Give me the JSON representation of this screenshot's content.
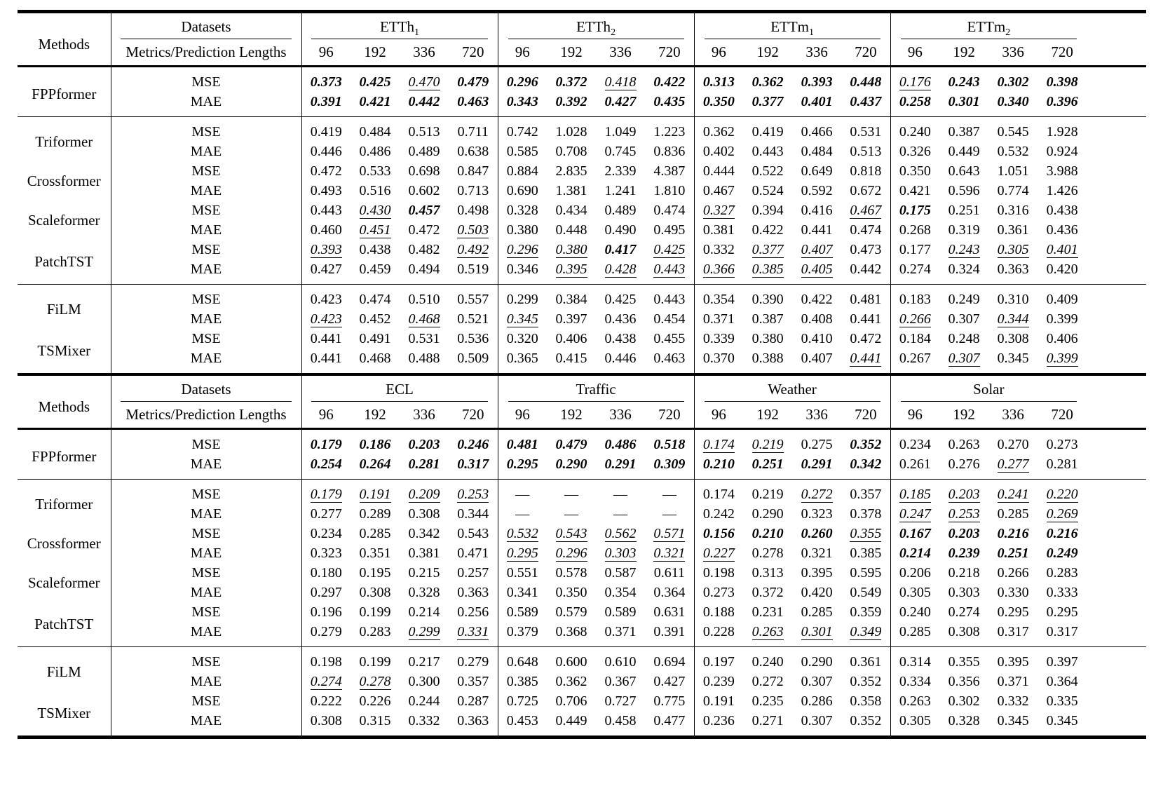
{
  "page": {
    "background": "#ffffff",
    "text_color": "#000000"
  },
  "table": {
    "methods_label": "Methods",
    "datasets_label": "Datasets",
    "metrics_label": "Metrics/Prediction Lengths",
    "lengths": [
      "96",
      "192",
      "336",
      "720"
    ],
    "metrics": [
      "MSE",
      "MAE"
    ],
    "formatting_legend": {
      "b": "best result (bold italic)",
      "u": "second-best result (underlined italic)",
      "plain": "no emphasis"
    },
    "missing_value": "—",
    "panels": [
      {
        "datasets": [
          {
            "label": "ETTh",
            "sub": "1"
          },
          {
            "label": "ETTh",
            "sub": "2"
          },
          {
            "label": "ETTm",
            "sub": "1"
          },
          {
            "label": "ETTm",
            "sub": "2"
          }
        ],
        "blocks": [
          [
            {
              "name": "FPPformer",
              "MSE": [
                "0.373|b",
                "0.425|b",
                "0.470|u",
                "0.479|b",
                "0.296|b",
                "0.372|b",
                "0.418|u",
                "0.422|b",
                "0.313|b",
                "0.362|b",
                "0.393|b",
                "0.448|b",
                "0.176|u",
                "0.243|b",
                "0.302|b",
                "0.398|b"
              ],
              "MAE": [
                "0.391|b",
                "0.421|b",
                "0.442|b",
                "0.463|b",
                "0.343|b",
                "0.392|b",
                "0.427|b",
                "0.435|b",
                "0.350|b",
                "0.377|b",
                "0.401|b",
                "0.437|b",
                "0.258|b",
                "0.301|b",
                "0.340|b",
                "0.396|b"
              ]
            }
          ],
          [
            {
              "name": "Triformer",
              "MSE": [
                "0.419",
                "0.484",
                "0.513",
                "0.711",
                "0.742",
                "1.028",
                "1.049",
                "1.223",
                "0.362",
                "0.419",
                "0.466",
                "0.531",
                "0.240",
                "0.387",
                "0.545",
                "1.928"
              ],
              "MAE": [
                "0.446",
                "0.486",
                "0.489",
                "0.638",
                "0.585",
                "0.708",
                "0.745",
                "0.836",
                "0.402",
                "0.443",
                "0.484",
                "0.513",
                "0.326",
                "0.449",
                "0.532",
                "0.924"
              ]
            },
            {
              "name": "Crossformer",
              "MSE": [
                "0.472",
                "0.533",
                "0.698",
                "0.847",
                "0.884",
                "2.835",
                "2.339",
                "4.387",
                "0.444",
                "0.522",
                "0.649",
                "0.818",
                "0.350",
                "0.643",
                "1.051",
                "3.988"
              ],
              "MAE": [
                "0.493",
                "0.516",
                "0.602",
                "0.713",
                "0.690",
                "1.381",
                "1.241",
                "1.810",
                "0.467",
                "0.524",
                "0.592",
                "0.672",
                "0.421",
                "0.596",
                "0.774",
                "1.426"
              ]
            },
            {
              "name": "Scaleformer",
              "MSE": [
                "0.443",
                "0.430|u",
                "0.457|b",
                "0.498",
                "0.328",
                "0.434",
                "0.489",
                "0.474",
                "0.327|u",
                "0.394",
                "0.416",
                "0.467|u",
                "0.175|b",
                "0.251",
                "0.316",
                "0.438"
              ],
              "MAE": [
                "0.460",
                "0.451|u",
                "0.472",
                "0.503|u",
                "0.380",
                "0.448",
                "0.490",
                "0.495",
                "0.381",
                "0.422",
                "0.441",
                "0.474",
                "0.268",
                "0.319",
                "0.361",
                "0.436"
              ]
            },
            {
              "name": "PatchTST",
              "MSE": [
                "0.393|u",
                "0.438",
                "0.482",
                "0.492|u",
                "0.296|u",
                "0.380|u",
                "0.417|b",
                "0.425|u",
                "0.332",
                "0.377|u",
                "0.407|u",
                "0.473",
                "0.177",
                "0.243|u",
                "0.305|u",
                "0.401|u"
              ],
              "MAE": [
                "0.427",
                "0.459",
                "0.494",
                "0.519",
                "0.346",
                "0.395|u",
                "0.428|u",
                "0.443|u",
                "0.366|u",
                "0.385|u",
                "0.405|u",
                "0.442",
                "0.274",
                "0.324",
                "0.363",
                "0.420"
              ]
            }
          ],
          [
            {
              "name": "FiLM",
              "MSE": [
                "0.423",
                "0.474",
                "0.510",
                "0.557",
                "0.299",
                "0.384",
                "0.425",
                "0.443",
                "0.354",
                "0.390",
                "0.422",
                "0.481",
                "0.183",
                "0.249",
                "0.310",
                "0.409"
              ],
              "MAE": [
                "0.423|u",
                "0.452",
                "0.468|u",
                "0.521",
                "0.345|u",
                "0.397",
                "0.436",
                "0.454",
                "0.371",
                "0.387",
                "0.408",
                "0.441",
                "0.266|u",
                "0.307",
                "0.344|u",
                "0.399"
              ]
            },
            {
              "name": "TSMixer",
              "MSE": [
                "0.441",
                "0.491",
                "0.531",
                "0.536",
                "0.320",
                "0.406",
                "0.438",
                "0.455",
                "0.339",
                "0.380",
                "0.410",
                "0.472",
                "0.184",
                "0.248",
                "0.308",
                "0.406"
              ],
              "MAE": [
                "0.441",
                "0.468",
                "0.488",
                "0.509",
                "0.365",
                "0.415",
                "0.446",
                "0.463",
                "0.370",
                "0.388",
                "0.407",
                "0.441|u",
                "0.267",
                "0.307|u",
                "0.345",
                "0.399|u"
              ]
            }
          ]
        ]
      },
      {
        "datasets": [
          {
            "label": "ECL",
            "sub": ""
          },
          {
            "label": "Traffic",
            "sub": ""
          },
          {
            "label": "Weather",
            "sub": ""
          },
          {
            "label": "Solar",
            "sub": ""
          }
        ],
        "blocks": [
          [
            {
              "name": "FPPformer",
              "MSE": [
                "0.179|b",
                "0.186|b",
                "0.203|b",
                "0.246|b",
                "0.481|b",
                "0.479|b",
                "0.486|b",
                "0.518|b",
                "0.174|u",
                "0.219|u",
                "0.275",
                "0.352|b",
                "0.234",
                "0.263",
                "0.270",
                "0.273"
              ],
              "MAE": [
                "0.254|b",
                "0.264|b",
                "0.281|b",
                "0.317|b",
                "0.295|b",
                "0.290|b",
                "0.291|b",
                "0.309|b",
                "0.210|b",
                "0.251|b",
                "0.291|b",
                "0.342|b",
                "0.261",
                "0.276",
                "0.277|u",
                "0.281"
              ]
            }
          ],
          [
            {
              "name": "Triformer",
              "MSE": [
                "0.179|u",
                "0.191|u",
                "0.209|u",
                "0.253|u",
                "—",
                "—",
                "—",
                "—",
                "0.174",
                "0.219",
                "0.272|u",
                "0.357",
                "0.185|u",
                "0.203|u",
                "0.241|u",
                "0.220|u"
              ],
              "MAE": [
                "0.277",
                "0.289",
                "0.308",
                "0.344",
                "—",
                "—",
                "—",
                "—",
                "0.242",
                "0.290",
                "0.323",
                "0.378",
                "0.247|u",
                "0.253|u",
                "0.285",
                "0.269|u"
              ]
            },
            {
              "name": "Crossformer",
              "MSE": [
                "0.234",
                "0.285",
                "0.342",
                "0.543",
                "0.532|u",
                "0.543|u",
                "0.562|u",
                "0.571|u",
                "0.156|b",
                "0.210|b",
                "0.260|b",
                "0.355|u",
                "0.167|b",
                "0.203|b",
                "0.216|b",
                "0.216|b"
              ],
              "MAE": [
                "0.323",
                "0.351",
                "0.381",
                "0.471",
                "0.295|u",
                "0.296|u",
                "0.303|u",
                "0.321|u",
                "0.227|u",
                "0.278",
                "0.321",
                "0.385",
                "0.214|b",
                "0.239|b",
                "0.251|b",
                "0.249|b"
              ]
            },
            {
              "name": "Scaleformer",
              "MSE": [
                "0.180",
                "0.195",
                "0.215",
                "0.257",
                "0.551",
                "0.578",
                "0.587",
                "0.611",
                "0.198",
                "0.313",
                "0.395",
                "0.595",
                "0.206",
                "0.218",
                "0.266",
                "0.283"
              ],
              "MAE": [
                "0.297",
                "0.308",
                "0.328",
                "0.363",
                "0.341",
                "0.350",
                "0.354",
                "0.364",
                "0.273",
                "0.372",
                "0.420",
                "0.549",
                "0.305",
                "0.303",
                "0.330",
                "0.333"
              ]
            },
            {
              "name": "PatchTST",
              "MSE": [
                "0.196",
                "0.199",
                "0.214",
                "0.256",
                "0.589",
                "0.579",
                "0.589",
                "0.631",
                "0.188",
                "0.231",
                "0.285",
                "0.359",
                "0.240",
                "0.274",
                "0.295",
                "0.295"
              ],
              "MAE": [
                "0.279",
                "0.283",
                "0.299|u",
                "0.331|u",
                "0.379",
                "0.368",
                "0.371",
                "0.391",
                "0.228",
                "0.263|u",
                "0.301|u",
                "0.349|u",
                "0.285",
                "0.308",
                "0.317",
                "0.317"
              ]
            }
          ],
          [
            {
              "name": "FiLM",
              "MSE": [
                "0.198",
                "0.199",
                "0.217",
                "0.279",
                "0.648",
                "0.600",
                "0.610",
                "0.694",
                "0.197",
                "0.240",
                "0.290",
                "0.361",
                "0.314",
                "0.355",
                "0.395",
                "0.397"
              ],
              "MAE": [
                "0.274|u",
                "0.278|u",
                "0.300",
                "0.357",
                "0.385",
                "0.362",
                "0.367",
                "0.427",
                "0.239",
                "0.272",
                "0.307",
                "0.352",
                "0.334",
                "0.356",
                "0.371",
                "0.364"
              ]
            },
            {
              "name": "TSMixer",
              "MSE": [
                "0.222",
                "0.226",
                "0.244",
                "0.287",
                "0.725",
                "0.706",
                "0.727",
                "0.775",
                "0.191",
                "0.235",
                "0.286",
                "0.358",
                "0.263",
                "0.302",
                "0.332",
                "0.335"
              ],
              "MAE": [
                "0.308",
                "0.315",
                "0.332",
                "0.363",
                "0.453",
                "0.449",
                "0.458",
                "0.477",
                "0.236",
                "0.271",
                "0.307",
                "0.352",
                "0.305",
                "0.328",
                "0.345",
                "0.345"
              ]
            }
          ]
        ]
      }
    ]
  }
}
